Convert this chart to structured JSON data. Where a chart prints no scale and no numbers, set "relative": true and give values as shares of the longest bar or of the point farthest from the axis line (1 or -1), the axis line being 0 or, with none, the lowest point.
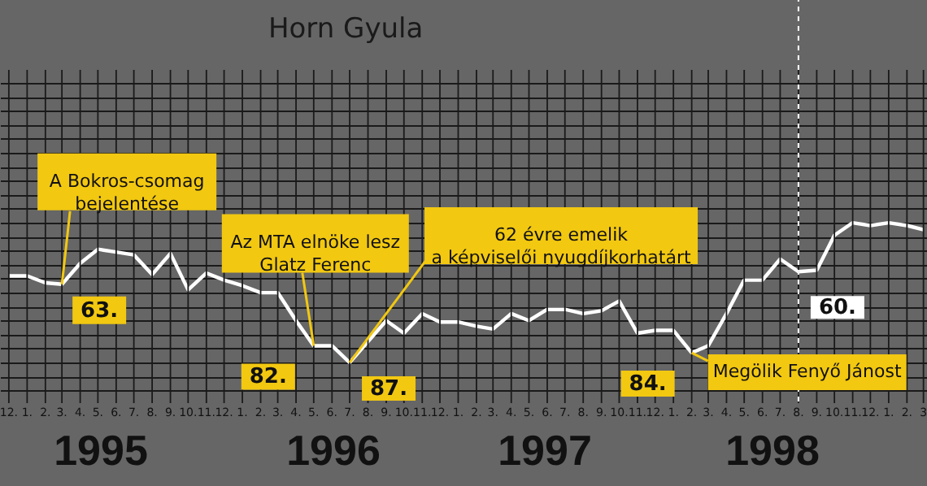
{
  "chart_data": {
    "type": "line",
    "title": "Horn Gyula",
    "relative": true,
    "color": "#ffffff",
    "grid": true,
    "tick_labels": "x",
    "x": [
      "1994-12",
      "1995-01",
      "1995-02",
      "1995-03",
      "1995-04",
      "1995-05",
      "1995-06",
      "1995-07",
      "1995-08",
      "1995-09",
      "1995-10",
      "1995-11",
      "1995-12",
      "1996-01",
      "1996-02",
      "1996-03",
      "1996-04",
      "1996-05",
      "1996-06",
      "1996-07",
      "1996-08",
      "1996-09",
      "1996-10",
      "1996-11",
      "1996-12",
      "1997-01",
      "1997-02",
      "1997-03",
      "1997-04",
      "1997-05",
      "1997-06",
      "1997-07",
      "1997-08",
      "1997-09",
      "1997-10",
      "1997-11",
      "1997-12",
      "1998-01",
      "1998-02",
      "1998-03",
      "1998-04",
      "1998-05",
      "1998-06",
      "1998-07",
      "1998-08",
      "1998-09",
      "1998-10",
      "1998-11",
      "1998-12",
      "1999-01",
      "1999-02",
      "1999-03"
    ],
    "values": [
      0.62,
      0.62,
      0.57,
      0.56,
      0.71,
      0.81,
      0.79,
      0.77,
      0.63,
      0.78,
      0.52,
      0.64,
      0.59,
      0.55,
      0.5,
      0.5,
      0.3,
      0.12,
      0.12,
      0,
      0.15,
      0.3,
      0.21,
      0.35,
      0.29,
      0.29,
      0.26,
      0.24,
      0.35,
      0.3,
      0.38,
      0.38,
      0.35,
      0.37,
      0.44,
      0.21,
      0.23,
      0.23,
      0.07,
      0.12,
      0.35,
      0.59,
      0.59,
      0.74,
      0.65,
      0.66,
      0.91,
      1,
      0.98,
      1,
      0.98,
      0.95
    ],
    "xlim": [
      "1994-11-16",
      "1999-03-07"
    ],
    "xticks": [
      {
        "value": "1994-12",
        "label": "12."
      },
      {
        "value": "1995-01",
        "label": "1."
      },
      {
        "value": "1995-02",
        "label": "2."
      },
      {
        "value": "1995-03",
        "label": "3."
      },
      {
        "value": "1995-04",
        "label": "4."
      },
      {
        "value": "1995-05",
        "label": "5."
      },
      {
        "value": "1995-06",
        "label": "6."
      },
      {
        "value": "1995-07",
        "label": "7."
      },
      {
        "value": "1995-08",
        "label": "8."
      },
      {
        "value": "1995-09",
        "label": "9."
      },
      {
        "value": "1995-10",
        "label": "10."
      },
      {
        "value": "1995-11",
        "label": "11."
      },
      {
        "value": "1995-12",
        "label": "12."
      },
      {
        "value": "1996-01",
        "label": "1."
      },
      {
        "value": "1996-02",
        "label": "2."
      },
      {
        "value": "1996-03",
        "label": "3."
      },
      {
        "value": "1996-04",
        "label": "4."
      },
      {
        "value": "1996-05",
        "label": "5."
      },
      {
        "value": "1996-06",
        "label": "6."
      },
      {
        "value": "1996-07",
        "label": "7."
      },
      {
        "value": "1996-08",
        "label": "8."
      },
      {
        "value": "1996-09",
        "label": "9."
      },
      {
        "value": "1996-10",
        "label": "10."
      },
      {
        "value": "1996-11",
        "label": "11."
      },
      {
        "value": "1996-12",
        "label": "12."
      },
      {
        "value": "1997-01",
        "label": "1."
      },
      {
        "value": "1997-02",
        "label": "2."
      },
      {
        "value": "1997-03",
        "label": "3."
      },
      {
        "value": "1997-04",
        "label": "4."
      },
      {
        "value": "1997-05",
        "label": "5."
      },
      {
        "value": "1997-06",
        "label": "6."
      },
      {
        "value": "1997-07",
        "label": "7."
      },
      {
        "value": "1997-08",
        "label": "8."
      },
      {
        "value": "1997-09",
        "label": "9."
      },
      {
        "value": "1997-10",
        "label": "10."
      },
      {
        "value": "1997-11",
        "label": "11."
      },
      {
        "value": "1997-12",
        "label": "12."
      },
      {
        "value": "1998-01",
        "label": "1."
      },
      {
        "value": "1998-02",
        "label": "2."
      },
      {
        "value": "1998-03",
        "label": "3."
      },
      {
        "value": "1998-04",
        "label": "4."
      },
      {
        "value": "1998-05",
        "label": "5."
      },
      {
        "value": "1998-06",
        "label": "6."
      },
      {
        "value": "1998-07",
        "label": "7."
      },
      {
        "value": "1998-08",
        "label": "8."
      },
      {
        "value": "1998-09",
        "label": "9."
      },
      {
        "value": "1998-10",
        "label": "10."
      },
      {
        "value": "1998-11",
        "label": "11."
      },
      {
        "value": "1998-12",
        "label": "12."
      },
      {
        "value": "1999-01",
        "label": "1."
      },
      {
        "value": "1999-02",
        "label": "2."
      },
      {
        "value": "1999-03",
        "label": "3"
      }
    ],
    "ref_lines": [
      {
        "axis": "x",
        "value": "1998-08",
        "color": "#ffffff",
        "line_style": "dashed"
      }
    ],
    "annotations": [
      {
        "text": "A Bokros-csomag\nbejelentése",
        "x": "1995-03",
        "y": 0.56
      },
      {
        "text": "63.",
        "x": "1995-03",
        "y": 0.56
      },
      {
        "text": "Az MTA elnöke lesz\nGlatz Ferenc",
        "x": "1996-05",
        "y": 0.12
      },
      {
        "text": "82.",
        "x": "1996-05",
        "y": 0.12
      },
      {
        "text": "62 évre emelik\na képviselői nyugdíjkorhatárt",
        "x": "1996-07",
        "y": 0
      },
      {
        "text": "87.",
        "x": "1996-07",
        "y": 0
      },
      {
        "text": "84.",
        "x": "1998-02",
        "y": 0.07
      },
      {
        "text": "Megölik Fenyő Jánost",
        "x": "1998-02",
        "y": 0.07
      },
      {
        "text": "60.",
        "x": "1998-08",
        "y": 0.65
      },
      "1995",
      "1996",
      "1997",
      "1998"
    ]
  }
}
